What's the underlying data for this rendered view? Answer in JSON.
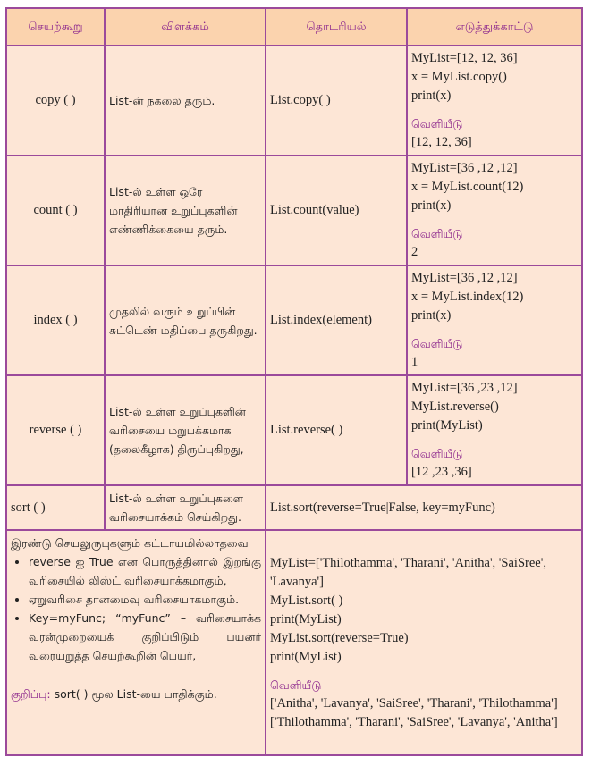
{
  "headers": [
    "செயற்கூறு",
    "விளக்கம்",
    "தொடரியல்",
    "எடுத்துக்காட்டு"
  ],
  "output_label": "வெளியீடு",
  "rows": [
    {
      "func": "copy ( )",
      "desc": "List-ன் நகலை தரும்.",
      "syntax": "List.copy( )",
      "code": [
        "MyList=[12, 12, 36]",
        "x = MyList.copy()",
        "print(x)"
      ],
      "output": [
        "[12, 12, 36]"
      ]
    },
    {
      "func": "count ( )",
      "desc": "List-ல் உள்ள ஒரே மாதிரியான உறுப்புகளின் எண்ணிக்கையை தரும்.",
      "syntax": "List.count(value)",
      "code": [
        "MyList=[36 ,12 ,12]",
        "x = MyList.count(12)",
        "print(x)"
      ],
      "output": [
        "2"
      ]
    },
    {
      "func": "index ( )",
      "desc": "முதலில் வரும் உறுப்பின் சுட்டெண் மதிப்பை தருகிறது.",
      "syntax": "List.index(element)",
      "code": [
        "MyList=[36 ,12 ,12]",
        "x = MyList.index(12)",
        "print(x)"
      ],
      "output": [
        "1"
      ]
    },
    {
      "func": "reverse ( )",
      "desc": "List-ல் உள்ள உறுப்புகளின் வரிசையை மறுபக்கமாக (தலைகீழாக) திருப்புகிறது,",
      "syntax": "List.reverse( )",
      "code": [
        "MyList=[36 ,23 ,12]",
        "MyList.reverse()",
        "print(MyList)"
      ],
      "output": [
        "[12 ,23 ,36]"
      ]
    }
  ],
  "sort": {
    "func": "sort ( )",
    "desc": "List-ல் உள்ள உறுப்புகளை வரிசையாக்கம் செய்கிறது.",
    "syntax": "List.sort(reverse=True|False, key=myFunc)",
    "intro": "இரண்டு செயலுருபுகளும் கட்டாயமில்லாதவை",
    "bullets": [
      "reverse ஐ True என பொருத்தினால் இறங்கு வரிசையில் லிஸ்ட் வரிசையாக்கமாகும்,",
      "ஏறுவரிசை தானமைவு வரிசையாகமாகும்.",
      "Key=myFunc; “myFunc” – வரிசையாக்க வரன்முறையைக் குறிப்பிடும் பயனர் வரையறுத்த செயற்கூறின் பெயர்,"
    ],
    "note_label": "குறிப்பு:",
    "note_text": " sort( ) மூல List-யை பாதிக்கும்.",
    "code": [
      "MyList=['Thilothamma', 'Tharani', 'Anitha', 'SaiSree', 'Lavanya']",
      "MyList.sort( )",
      "print(MyList)",
      "MyList.sort(reverse=True)",
      "print(MyList)"
    ],
    "output": [
      "['Anitha', 'Lavanya', 'SaiSree', 'Tharani', 'Thilothamma']",
      "['Thilothamma', 'Tharani', 'SaiSree', 'Lavanya', 'Anitha']"
    ]
  }
}
